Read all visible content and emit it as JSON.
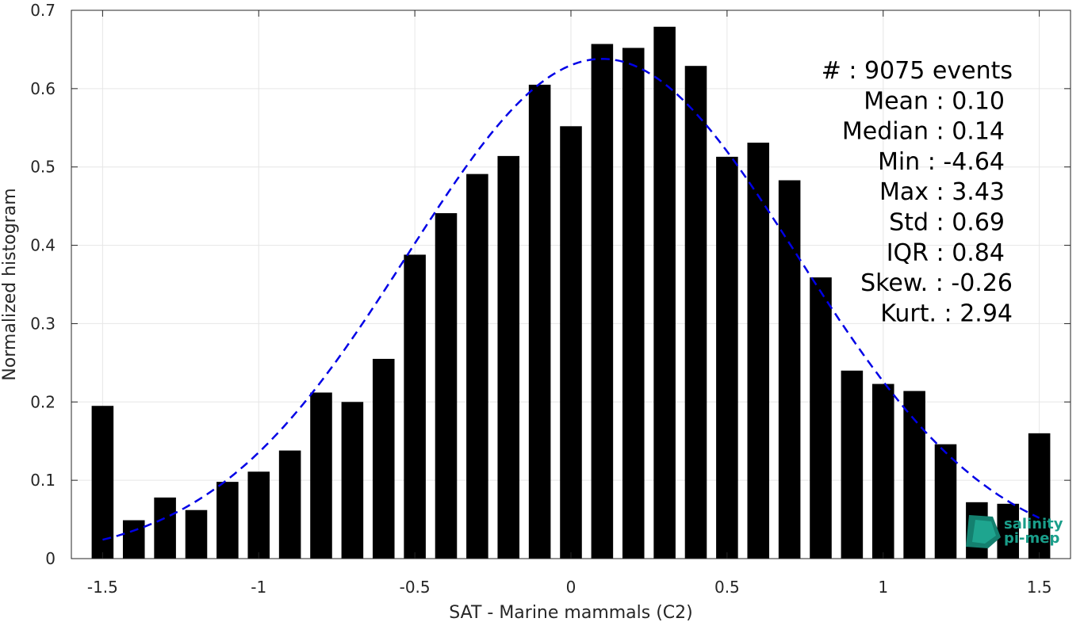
{
  "chart_data": {
    "type": "bar",
    "xlabel": "SAT - Marine mammals (C2)",
    "ylabel": "Normalized histogram",
    "xlim": [
      -1.6,
      1.6
    ],
    "ylim": [
      0,
      0.7
    ],
    "xticks": [
      -1.5,
      -1,
      -0.5,
      0,
      0.5,
      1,
      1.5
    ],
    "xtick_labels": [
      "-1.5",
      "-1",
      "-0.5",
      "0",
      "0.5",
      "1",
      "1.5"
    ],
    "yticks": [
      0,
      0.1,
      0.2,
      0.3,
      0.4,
      0.5,
      0.6,
      0.7
    ],
    "ytick_labels": [
      "0",
      "0.1",
      "0.2",
      "0.3",
      "0.4",
      "0.5",
      "0.6",
      "0.7"
    ],
    "grid": true,
    "bar_width": 0.07,
    "bar_color": "#000000",
    "x": [
      -1.5,
      -1.4,
      -1.3,
      -1.2,
      -1.1,
      -1.0,
      -0.9,
      -0.8,
      -0.7,
      -0.6,
      -0.5,
      -0.4,
      -0.3,
      -0.2,
      -0.1,
      0.0,
      0.1,
      0.2,
      0.3,
      0.4,
      0.5,
      0.6,
      0.7,
      0.8,
      0.9,
      1.0,
      1.1,
      1.2,
      1.3,
      1.4,
      1.5
    ],
    "values": [
      0.195,
      0.049,
      0.078,
      0.062,
      0.098,
      0.111,
      0.138,
      0.212,
      0.2,
      0.255,
      0.388,
      0.441,
      0.491,
      0.514,
      0.605,
      0.552,
      0.657,
      0.652,
      0.679,
      0.629,
      0.513,
      0.531,
      0.483,
      0.359,
      0.24,
      0.223,
      0.214,
      0.146,
      0.072,
      0.07,
      0.16
    ],
    "fit": {
      "type": "gaussian",
      "mean": 0.1,
      "std": 0.625,
      "peak": 0.638,
      "xrange": [
        -1.5,
        1.5
      ],
      "color": "#0000e6",
      "style": "dashed"
    },
    "stats": [
      {
        "label": "#  : 9075 events",
        "indent": false
      },
      {
        "label": "Mean : 0.10",
        "indent": true
      },
      {
        "label": "Median : 0.14",
        "indent": true
      },
      {
        "label": "Min : -4.64",
        "indent": true
      },
      {
        "label": "Max : 3.43",
        "indent": true
      },
      {
        "label": "Std : 0.69",
        "indent": true
      },
      {
        "label": "IQR : 0.84",
        "indent": true
      },
      {
        "label": "Skew. : -0.26",
        "indent": false
      },
      {
        "label": "Kurt. : 2.94",
        "indent": false
      }
    ],
    "logo": {
      "line1": "salinity",
      "line2": "pi-mep",
      "color": "#1a9e8a"
    }
  }
}
